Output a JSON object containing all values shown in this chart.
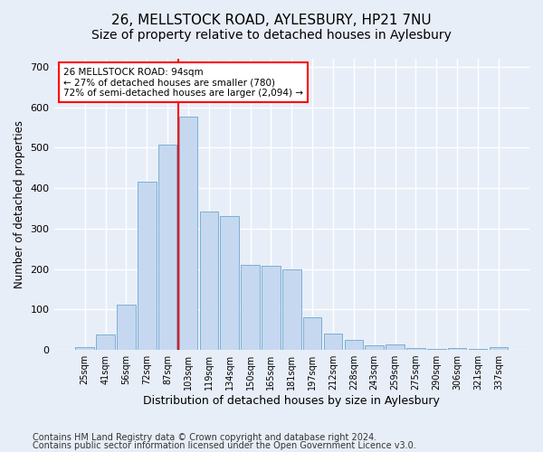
{
  "title1": "26, MELLSTOCK ROAD, AYLESBURY, HP21 7NU",
  "title2": "Size of property relative to detached houses in Aylesbury",
  "xlabel": "Distribution of detached houses by size in Aylesbury",
  "ylabel": "Number of detached properties",
  "footnote1": "Contains HM Land Registry data © Crown copyright and database right 2024.",
  "footnote2": "Contains public sector information licensed under the Open Government Licence v3.0.",
  "categories": [
    "25sqm",
    "41sqm",
    "56sqm",
    "72sqm",
    "87sqm",
    "103sqm",
    "119sqm",
    "134sqm",
    "150sqm",
    "165sqm",
    "181sqm",
    "197sqm",
    "212sqm",
    "228sqm",
    "243sqm",
    "259sqm",
    "275sqm",
    "290sqm",
    "306sqm",
    "321sqm",
    "337sqm"
  ],
  "values": [
    8,
    38,
    113,
    415,
    507,
    578,
    342,
    330,
    210,
    208,
    200,
    80,
    40,
    25,
    12,
    14,
    5,
    2,
    5,
    2,
    6
  ],
  "bar_color": "#c5d8f0",
  "bar_edge_color": "#7bafd4",
  "property_bin_index": 4,
  "vline_color": "red",
  "annotation_line1": "26 MELLSTOCK ROAD: 94sqm",
  "annotation_line2": "← 27% of detached houses are smaller (780)",
  "annotation_line3": "72% of semi-detached houses are larger (2,094) →",
  "annotation_box_color": "white",
  "annotation_box_edge_color": "red",
  "ylim": [
    0,
    720
  ],
  "yticks": [
    0,
    100,
    200,
    300,
    400,
    500,
    600,
    700
  ],
  "bg_color": "#e8eef8",
  "plot_bg_color": "#e8eef8",
  "grid_color": "white",
  "title1_fontsize": 11,
  "title2_fontsize": 10,
  "xlabel_fontsize": 9,
  "ylabel_fontsize": 8.5,
  "footnote_fontsize": 7
}
